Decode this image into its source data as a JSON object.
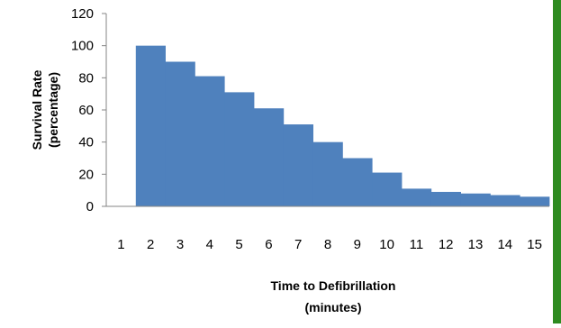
{
  "chart_data": {
    "type": "bar",
    "categories": [
      "1",
      "2",
      "3",
      "4",
      "5",
      "6",
      "7",
      "8",
      "9",
      "10",
      "11",
      "12",
      "13",
      "14",
      "15"
    ],
    "values": [
      0,
      100,
      90,
      81,
      71,
      61,
      51,
      40,
      30,
      21,
      11,
      9,
      8,
      7,
      6
    ],
    "xlabel_lines": [
      "Time to Defibrillation",
      "(minutes)"
    ],
    "ylabel_lines": [
      "Survival Rate",
      "(percentage)"
    ],
    "y_ticks": [
      "0",
      "20",
      "40",
      "60",
      "80",
      "100",
      "120"
    ],
    "ylim": [
      0,
      120
    ],
    "bar_gap": 0,
    "grid": false,
    "bar_color": "#4F81BD",
    "axis_color": "#868686"
  },
  "frame": {
    "right_edge_color": "#2E8B20"
  }
}
